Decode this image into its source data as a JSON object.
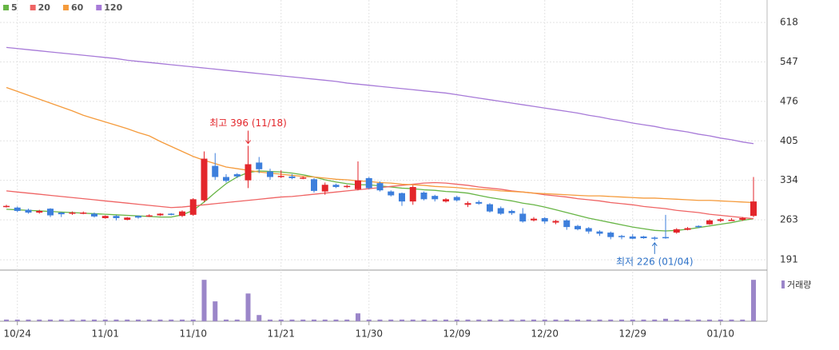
{
  "chart_data": [
    {
      "type": "candlestick",
      "categories": [
        null,
        "10/24",
        null,
        null,
        null,
        null,
        null,
        null,
        null,
        "11/01",
        null,
        null,
        null,
        null,
        null,
        null,
        null,
        "11/10",
        null,
        null,
        null,
        null,
        null,
        null,
        null,
        "11/21",
        null,
        null,
        null,
        null,
        null,
        null,
        null,
        "11/30",
        null,
        null,
        null,
        null,
        null,
        null,
        null,
        "12/09",
        null,
        null,
        null,
        null,
        null,
        null,
        null,
        "12/20",
        null,
        null,
        null,
        null,
        null,
        null,
        null,
        "12/29",
        null,
        null,
        null,
        null,
        null,
        null,
        null,
        "01/10",
        null,
        null,
        null
      ],
      "open": [
        286,
        285,
        281,
        276,
        283,
        276,
        274,
        275,
        274,
        266,
        270,
        263,
        270,
        269,
        271,
        274,
        270,
        272,
        298,
        360,
        340,
        345,
        334,
        366,
        350,
        340,
        341,
        337,
        336,
        314,
        326,
        322,
        318,
        338,
        329,
        314,
        311,
        296,
        312,
        306,
        296,
        304,
        290,
        295,
        291,
        284,
        279,
        274,
        262,
        266,
        258,
        262,
        252,
        248,
        242,
        240,
        234,
        233,
        233,
        231,
        232,
        240,
        245,
        252,
        255,
        261,
        262,
        263,
        270
      ],
      "high": [
        290,
        287,
        283,
        281,
        284,
        277,
        278,
        278,
        276,
        271,
        272,
        268,
        271,
        273,
        275,
        275,
        280,
        302,
        386,
        383,
        345,
        347,
        396,
        376,
        355,
        352,
        345,
        341,
        338,
        330,
        328,
        326,
        368,
        340,
        332,
        316,
        312,
        325,
        314,
        308,
        302,
        306,
        296,
        298,
        293,
        287,
        281,
        284,
        268,
        268,
        263,
        264,
        254,
        250,
        244,
        242,
        236,
        237,
        234,
        233,
        272,
        248,
        250,
        253,
        264,
        266,
        266,
        268,
        340
      ],
      "low": [
        285,
        277,
        274,
        274,
        268,
        268,
        272,
        273,
        267,
        265,
        262,
        262,
        265,
        268,
        270,
        271,
        268,
        270,
        295,
        335,
        330,
        338,
        320,
        347,
        335,
        338,
        336,
        336,
        312,
        308,
        320,
        320,
        316,
        318,
        314,
        305,
        288,
        290,
        298,
        296,
        294,
        296,
        286,
        290,
        276,
        272,
        272,
        258,
        260,
        256,
        255,
        245,
        244,
        238,
        234,
        228,
        228,
        228,
        229,
        226,
        229,
        238,
        244,
        248,
        254,
        259,
        261,
        261,
        268
      ],
      "close": [
        288,
        279,
        276,
        279,
        271,
        273,
        276,
        276,
        269,
        270,
        266,
        267,
        267,
        271,
        274,
        272,
        278,
        300,
        373,
        340,
        333,
        341,
        363,
        354,
        340,
        342,
        338,
        339,
        315,
        326,
        322,
        324,
        334,
        320,
        316,
        307,
        296,
        322,
        300,
        300,
        300,
        298,
        293,
        292,
        278,
        274,
        275,
        260,
        265,
        260,
        261,
        250,
        246,
        242,
        238,
        232,
        232,
        229,
        230,
        229,
        230,
        246,
        248,
        250,
        262,
        264,
        263,
        266,
        296
      ],
      "up_color": "#e3262b",
      "down_color": "#3d7fdc",
      "series": [
        {
          "name": "5",
          "color": "#67b545",
          "values": [
            282,
            281,
            280,
            279,
            278,
            277,
            276,
            275,
            274,
            273,
            272,
            271,
            270,
            269,
            268,
            268,
            272,
            280,
            295,
            312,
            328,
            340,
            348,
            351,
            350,
            349,
            347,
            344,
            340,
            335,
            331,
            328,
            326,
            326,
            324,
            322,
            320,
            319,
            317,
            316,
            314,
            313,
            311,
            307,
            303,
            300,
            297,
            293,
            290,
            286,
            281,
            276,
            271,
            266,
            262,
            258,
            254,
            250,
            247,
            244,
            243,
            244,
            246,
            249,
            252,
            255,
            258,
            262,
            265
          ]
        },
        {
          "name": "20",
          "color": "#ef6464",
          "values": [
            315,
            313,
            311,
            309,
            307,
            305,
            303,
            301,
            299,
            297,
            295,
            293,
            291,
            289,
            287,
            285,
            286,
            288,
            290,
            292,
            294,
            296,
            298,
            300,
            302,
            304,
            305,
            307,
            309,
            311,
            313,
            315,
            317,
            319,
            321,
            323,
            325,
            327,
            329,
            330,
            329,
            327,
            325,
            322,
            320,
            318,
            315,
            313,
            311,
            308,
            306,
            304,
            301,
            299,
            297,
            294,
            292,
            290,
            287,
            285,
            283,
            280,
            278,
            276,
            273,
            271,
            269,
            267,
            265
          ]
        },
        {
          "name": "60",
          "color": "#f59b3c",
          "values": [
            501,
            494,
            487,
            480,
            473,
            466,
            459,
            451,
            445,
            439,
            433,
            427,
            420,
            414,
            404,
            395,
            386,
            377,
            370,
            364,
            358,
            355,
            352,
            349,
            347,
            345,
            343,
            341,
            340,
            338,
            336,
            335,
            333,
            332,
            330,
            329,
            327,
            326,
            325,
            323,
            322,
            321,
            319,
            318,
            317,
            315,
            314,
            313,
            311,
            310,
            309,
            308,
            307,
            306,
            306,
            305,
            304,
            303,
            302,
            302,
            301,
            300,
            299,
            298,
            298,
            297,
            296,
            295,
            294
          ]
        },
        {
          "name": "120",
          "color": "#a77ad8",
          "values": [
            573,
            571,
            569,
            567,
            565,
            563,
            561,
            559,
            557,
            555,
            553,
            550,
            548,
            546,
            544,
            542,
            540,
            538,
            536,
            534,
            532,
            530,
            528,
            526,
            524,
            522,
            520,
            518,
            516,
            514,
            512,
            509,
            507,
            505,
            503,
            501,
            499,
            497,
            495,
            493,
            491,
            488,
            485,
            482,
            479,
            476,
            473,
            470,
            467,
            464,
            461,
            458,
            455,
            451,
            448,
            444,
            441,
            437,
            434,
            431,
            427,
            424,
            421,
            417,
            414,
            410,
            407,
            403,
            400
          ]
        }
      ],
      "annotations": [
        {
          "text": "최고 396 (11/18)",
          "color": "#e3262b"
        },
        {
          "text": "최저 226 (01/04)",
          "color": "#2f73c9"
        }
      ],
      "ylim": [
        174,
        644
      ],
      "yticks": [
        191,
        263,
        334,
        405,
        476,
        547,
        618
      ],
      "grid": true
    },
    {
      "type": "bar",
      "series": [
        {
          "name": "거래량",
          "color": "#9b86c9",
          "values": [
            4,
            4,
            4,
            4,
            4,
            4,
            4,
            4,
            4,
            4,
            4,
            4,
            4,
            4,
            4,
            4,
            4,
            4,
            100,
            48,
            4,
            4,
            67,
            15,
            4,
            4,
            4,
            4,
            4,
            4,
            4,
            4,
            19,
            4,
            4,
            4,
            4,
            4,
            4,
            4,
            4,
            4,
            4,
            4,
            4,
            4,
            4,
            4,
            4,
            4,
            4,
            4,
            4,
            4,
            4,
            4,
            4,
            4,
            4,
            4,
            6,
            4,
            4,
            4,
            4,
            4,
            4,
            4,
            100
          ]
        }
      ],
      "ylim": [
        0,
        110
      ]
    }
  ]
}
